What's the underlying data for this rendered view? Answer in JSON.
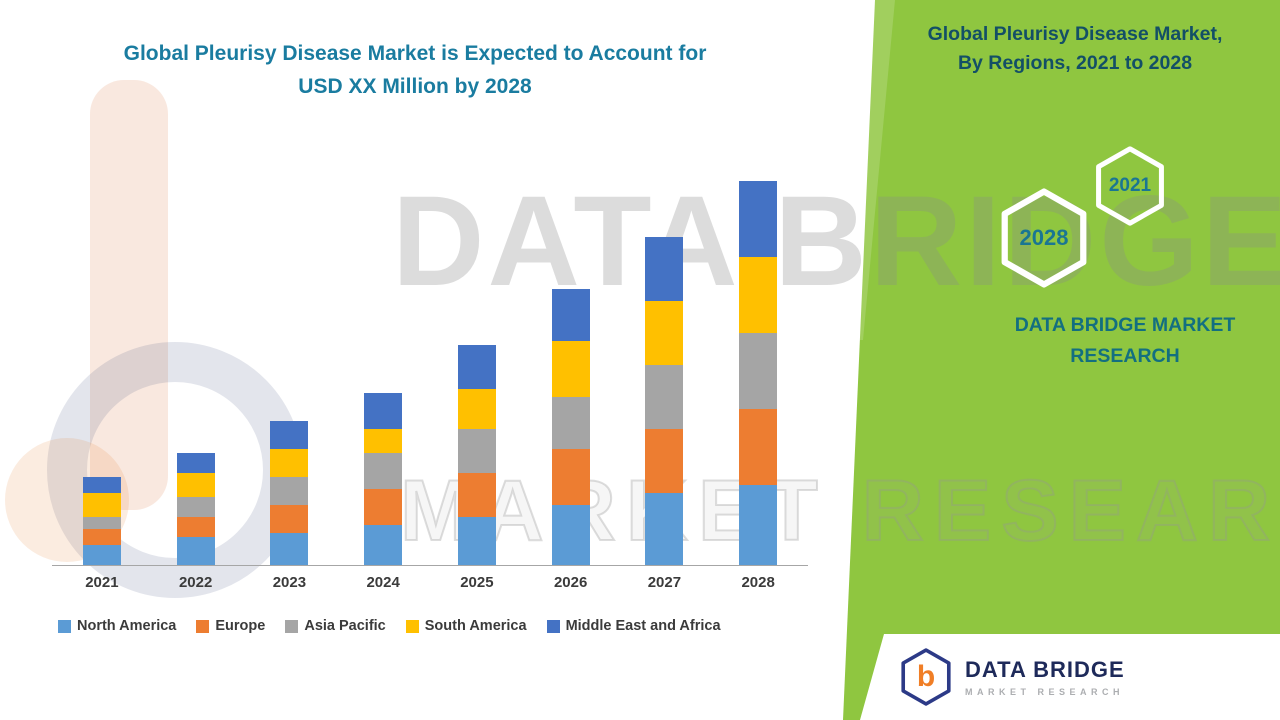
{
  "main_title": {
    "line1": "Global Pleurisy Disease Market is Expected to Account for",
    "line2": "USD XX Million by 2028"
  },
  "side_panel": {
    "title_line1": "Global Pleurisy Disease Market,",
    "title_line2": "By Regions, 2021 to 2028",
    "hexagon_left": "2028",
    "hexagon_right": "2021",
    "brand_line1": "DATA BRIDGE MARKET",
    "brand_line2": "RESEARCH"
  },
  "watermark": {
    "line1": "DATA BRIDGE",
    "line2": "MARKET RESEARCH"
  },
  "footer_logo": {
    "monogram": "b",
    "name": "DATA BRIDGE",
    "subtitle": "MARKET RESEARCH"
  },
  "colors": {
    "panel_green": "#8FC640",
    "title_teal": "#1A7CA0",
    "panel_text_teal": "#134F66",
    "axis_gray": "#A6A6A6"
  },
  "chart_data": {
    "type": "bar",
    "stacked": true,
    "title": "Global Pleurisy Disease Market is Expected to Account for USD XX Million by 2028",
    "xlabel": "",
    "ylabel": "",
    "y_axis_visible": false,
    "grid": false,
    "legend_position": "bottom",
    "categories": [
      "2021",
      "2022",
      "2023",
      "2024",
      "2025",
      "2026",
      "2027",
      "2028"
    ],
    "series": [
      {
        "name": "North America",
        "color": "#5B9BD5",
        "values": [
          5,
          7,
          8,
          10,
          12,
          15,
          18,
          20
        ]
      },
      {
        "name": "Europe",
        "color": "#ED7D31",
        "values": [
          4,
          5,
          7,
          9,
          11,
          14,
          16,
          19
        ]
      },
      {
        "name": "Asia Pacific",
        "color": "#A5A5A5",
        "values": [
          3,
          5,
          7,
          9,
          11,
          13,
          16,
          19
        ]
      },
      {
        "name": "South America",
        "color": "#FFC000",
        "values": [
          6,
          6,
          7,
          6,
          10,
          14,
          16,
          19
        ]
      },
      {
        "name": "Middle East and Africa",
        "color": "#4472C4",
        "values": [
          4,
          5,
          7,
          9,
          11,
          13,
          16,
          19
        ]
      }
    ],
    "ylim": [
      0,
      100
    ],
    "values_note_unit": "relative index (axis values not shown, USD XX Million)"
  }
}
